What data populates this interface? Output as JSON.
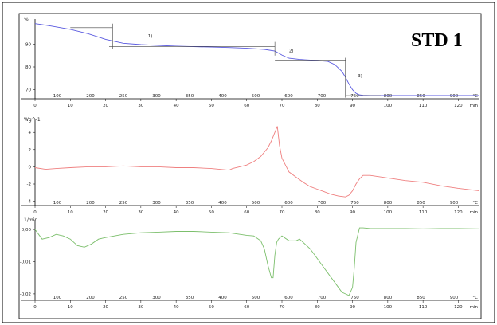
{
  "title": "STD 1",
  "colors": {
    "tga": "#5a5ae0",
    "dsc": "#ef8080",
    "dtg": "#7cbf6c",
    "frame": "#000000"
  },
  "chart_data": [
    {
      "type": "line",
      "id": "tga",
      "ylabel": "%",
      "ylim": [
        66,
        101
      ],
      "yticks": [
        70,
        80,
        90
      ],
      "xlim": [
        0,
        126
      ],
      "series": [
        {
          "x": [
            0,
            2,
            5,
            10,
            15,
            20,
            25,
            30,
            35,
            40,
            45,
            50,
            55,
            60,
            65,
            68,
            70,
            72,
            75,
            78,
            80,
            83,
            85,
            87,
            88,
            89,
            90,
            91,
            92,
            93,
            95,
            100,
            110,
            120,
            126
          ],
          "y": [
            99,
            98.6,
            97.8,
            96.5,
            94.6,
            92.1,
            90.4,
            89.8,
            89.4,
            89.1,
            88.9,
            88.7,
            88.5,
            88.2,
            87.7,
            87.0,
            85.2,
            83.8,
            83.3,
            83.0,
            82.8,
            82.4,
            81.0,
            78.0,
            75.5,
            72.5,
            70.0,
            68.4,
            67.7,
            67.5,
            67.4,
            67.4,
            67.4,
            67.4,
            67.4
          ]
        }
      ],
      "annotations": [
        {
          "text": "1)",
          "x": 32,
          "y": 93
        },
        {
          "text": "2)",
          "x": 72,
          "y": 86.5
        },
        {
          "text": "3)",
          "x": 91.5,
          "y": 75.5
        }
      ],
      "xunit_top_labels": {
        "°C": [
          100,
          200,
          250,
          300,
          350,
          400,
          500,
          600,
          700,
          750,
          800,
          850,
          900
        ]
      }
    },
    {
      "type": "line",
      "id": "dsc",
      "ylabel": "Wg^-1",
      "ylim": [
        -4.5,
        5.5
      ],
      "yticks": [
        4,
        2,
        0,
        -2,
        -4
      ],
      "xlim": [
        0,
        126
      ],
      "series": [
        {
          "x": [
            0,
            3,
            6,
            10,
            15,
            20,
            25,
            30,
            35,
            40,
            45,
            50,
            55,
            56,
            58,
            60,
            62,
            64,
            66,
            67,
            68,
            68.7,
            69.3,
            70,
            71,
            72,
            74,
            76,
            78,
            80,
            82,
            84,
            86,
            88,
            89,
            90,
            91,
            92,
            93,
            95,
            100,
            105,
            110,
            115,
            120,
            126
          ],
          "y": [
            -0.1,
            -0.3,
            -0.2,
            -0.1,
            0.0,
            0.0,
            0.1,
            0.0,
            0.0,
            -0.1,
            -0.1,
            -0.2,
            -0.4,
            -0.2,
            0.0,
            0.2,
            0.6,
            1.2,
            2.2,
            3.0,
            4.0,
            4.7,
            2.5,
            1.0,
            0.2,
            -0.6,
            -1.2,
            -1.8,
            -2.3,
            -2.6,
            -2.9,
            -3.2,
            -3.4,
            -3.5,
            -3.3,
            -2.8,
            -2.0,
            -1.4,
            -1.0,
            -1.0,
            -1.3,
            -1.6,
            -1.8,
            -2.2,
            -2.5,
            -2.8
          ]
        }
      ],
      "xunit_labels": {
        "°C": [
          100,
          200,
          250,
          300,
          350,
          400,
          500,
          600,
          700,
          750,
          800,
          850,
          900
        ]
      }
    },
    {
      "type": "line",
      "id": "dtg",
      "ylabel": "1/min",
      "ylim": [
        -0.022,
        0.003
      ],
      "yticks": [
        0.0,
        -0.01,
        -0.02
      ],
      "ytick_labels": [
        "0,00",
        "-0,01",
        "-0,02"
      ],
      "xlim": [
        0,
        126
      ],
      "series": [
        {
          "x": [
            0,
            2,
            4,
            6,
            8,
            10,
            12,
            14,
            16,
            18,
            20,
            25,
            30,
            35,
            40,
            45,
            50,
            55,
            60,
            62,
            64,
            65,
            66,
            67,
            67.5,
            68,
            68.5,
            69,
            70,
            72,
            74,
            75,
            76,
            78,
            80,
            82,
            84,
            86,
            87,
            88,
            89,
            90,
            90.5,
            91,
            92,
            93,
            95,
            100,
            105,
            110,
            115,
            120,
            126
          ],
          "y": [
            0.0,
            -0.003,
            -0.0025,
            -0.0015,
            -0.002,
            -0.003,
            -0.005,
            -0.0055,
            -0.0045,
            -0.003,
            -0.0025,
            -0.0015,
            -0.001,
            -0.0008,
            -0.0006,
            -0.0006,
            -0.0008,
            -0.001,
            -0.0018,
            -0.002,
            -0.0035,
            -0.006,
            -0.011,
            -0.015,
            -0.015,
            -0.008,
            -0.004,
            -0.003,
            -0.002,
            -0.0035,
            -0.0035,
            -0.003,
            -0.004,
            -0.006,
            -0.009,
            -0.012,
            -0.015,
            -0.018,
            -0.0195,
            -0.02,
            -0.0205,
            -0.018,
            -0.012,
            -0.004,
            0.0005,
            0.0005,
            0.0003,
            0.0003,
            0.0003,
            0.0002,
            0.0003,
            0.0003,
            0.0002
          ]
        }
      ],
      "xunit_labels": {
        "°C": [
          100,
          200,
          250,
          300,
          350,
          400,
          500,
          600,
          700,
          750,
          800,
          850,
          900
        ]
      }
    }
  ],
  "xticks": [
    0,
    10,
    20,
    30,
    40,
    50,
    60,
    70,
    80,
    90,
    100,
    110,
    120
  ],
  "xunit": "min"
}
